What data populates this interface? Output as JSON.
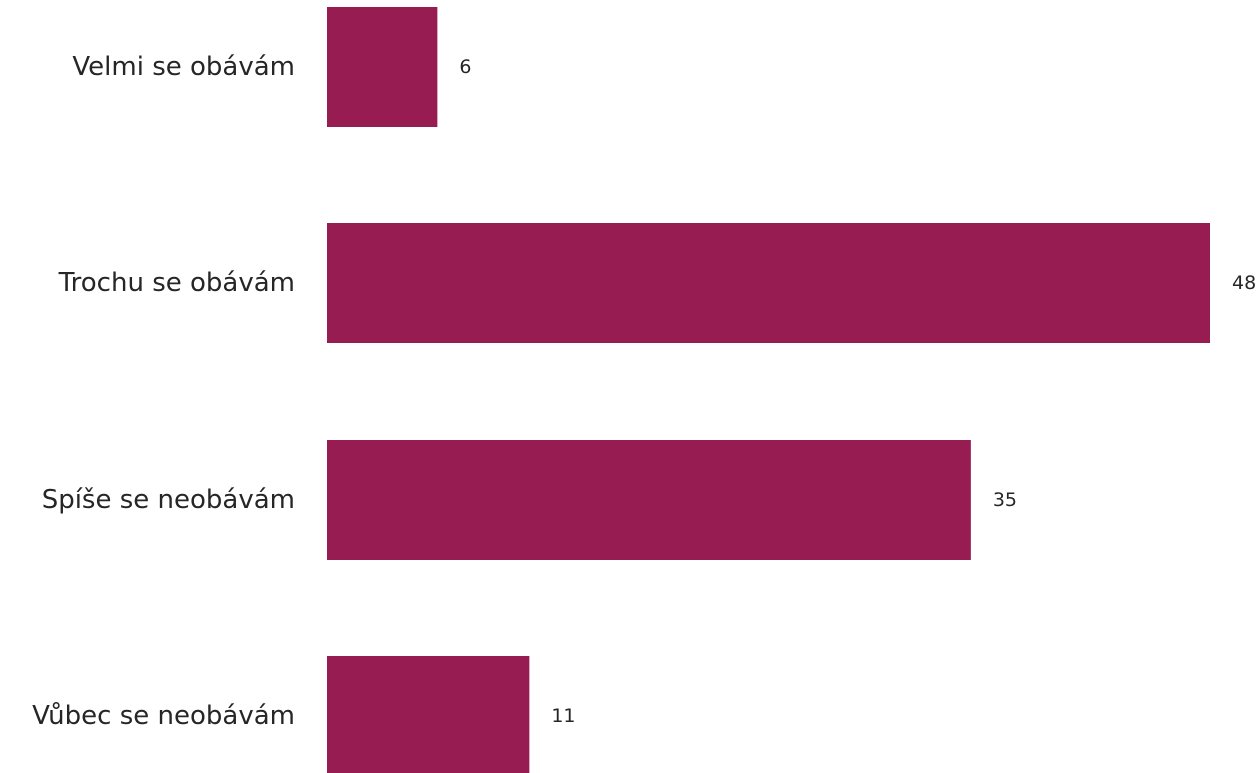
{
  "chart_data": {
    "type": "bar",
    "orientation": "horizontal",
    "categories": [
      "Velmi se obávám",
      "Trochu se obávám",
      "Spíše se neobávám",
      "Vůbec se neobávám"
    ],
    "values": [
      6,
      48,
      35,
      11
    ],
    "data_labels": [
      "6",
      "48",
      "35",
      "11"
    ],
    "title": "",
    "xlabel": "",
    "ylabel": "",
    "xlim": [
      0,
      48
    ],
    "grid": false,
    "legend": "none",
    "colors": {
      "bar": "#961C52",
      "text": "#262626",
      "background": "#FFFFFF"
    }
  }
}
